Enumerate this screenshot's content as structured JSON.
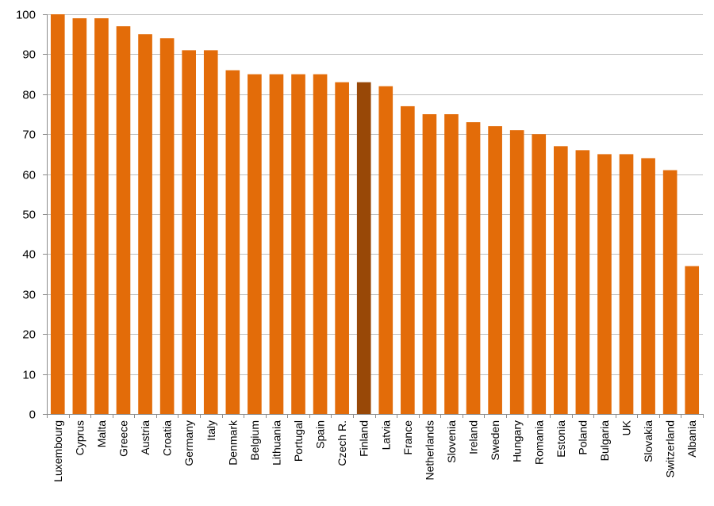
{
  "chart_data": {
    "type": "bar",
    "title": "",
    "xlabel": "",
    "ylabel": "",
    "ylim": [
      0,
      100
    ],
    "yticks": [
      0,
      10,
      20,
      30,
      40,
      50,
      60,
      70,
      80,
      90,
      100
    ],
    "grid": true,
    "legend": "none",
    "bar_color": "#E36C09",
    "highlight_color": "#984807",
    "highlight_category": "Finland",
    "categories": [
      "Luxembourg",
      "Cyprus",
      "Malta",
      "Greece",
      "Austria",
      "Croatia",
      "Germany",
      "Italy",
      "Denmark",
      "Belgium",
      "Lithuania",
      "Portugal",
      "Spain",
      "Czech R.",
      "Finland",
      "Latvia",
      "France",
      "Netherlands",
      "Slovenia",
      "Ireland",
      "Sweden",
      "Hungary",
      "Romania",
      "Estonia",
      "Poland",
      "Bulgaria",
      "UK",
      "Slovakia",
      "Switzerland",
      "Albania"
    ],
    "values": [
      100,
      99,
      99,
      97,
      95,
      94,
      91,
      91,
      86,
      85,
      85,
      85,
      85,
      83,
      83,
      82,
      77,
      75,
      75,
      73,
      72,
      71,
      70,
      67,
      66,
      65,
      65,
      64,
      61,
      37
    ]
  }
}
